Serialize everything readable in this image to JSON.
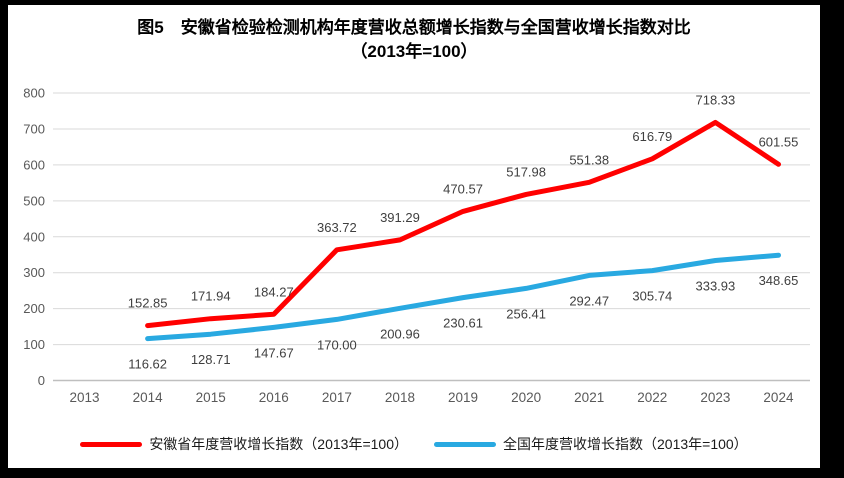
{
  "title": {
    "line1": "图5　安徽省检验检测机构年度营收总额增长指数与全国营收增长指数对比",
    "line2": "（2013年=100）"
  },
  "colors": {
    "anhui_red": "#FF0000",
    "national_blue": "#29A9E1",
    "gridline": "#D9D9D9",
    "axis_line": "#BFBFBF",
    "axis_text": "#595959",
    "label_text": "#3F3F3F"
  },
  "chart_data": {
    "type": "line",
    "title": "图5　安徽省检验检测机构年度营收总额增长指数与全国营收增长指数对比",
    "subtitle": "（2013年=100）",
    "categories": [
      "2013",
      "2014",
      "2015",
      "2016",
      "2017",
      "2018",
      "2019",
      "2020",
      "2021",
      "2022",
      "2023",
      "2024"
    ],
    "series": [
      {
        "name": "安徽省年度营收增长指数（2013年=100）",
        "color": "#FF0000",
        "label_position": "above",
        "values": [
          null,
          152.85,
          171.94,
          184.27,
          363.72,
          391.29,
          470.57,
          517.98,
          551.38,
          616.79,
          718.33,
          601.55
        ],
        "labels": [
          null,
          "152.85",
          "171.94",
          "184.27",
          "363.72",
          "391.29",
          "470.57",
          "517.98",
          "551.38",
          "616.79",
          "718.33",
          "601.55"
        ]
      },
      {
        "name": "全国年度营收增长指数（2013年=100）",
        "color": "#29A9E1",
        "label_position": "below",
        "values": [
          null,
          116.62,
          128.71,
          147.67,
          170.0,
          200.96,
          230.61,
          256.41,
          292.47,
          305.74,
          333.93,
          348.65
        ],
        "labels": [
          null,
          "116.62",
          "128.71",
          "147.67",
          "170.00",
          "200.96",
          "230.61",
          "256.41",
          "292.47",
          "305.74",
          "333.93",
          "348.65"
        ]
      }
    ],
    "ylim": [
      0,
      800
    ],
    "yticks": [
      0,
      100,
      200,
      300,
      400,
      500,
      600,
      700,
      800
    ],
    "grid": "horizontal",
    "legend_position": "bottom"
  }
}
